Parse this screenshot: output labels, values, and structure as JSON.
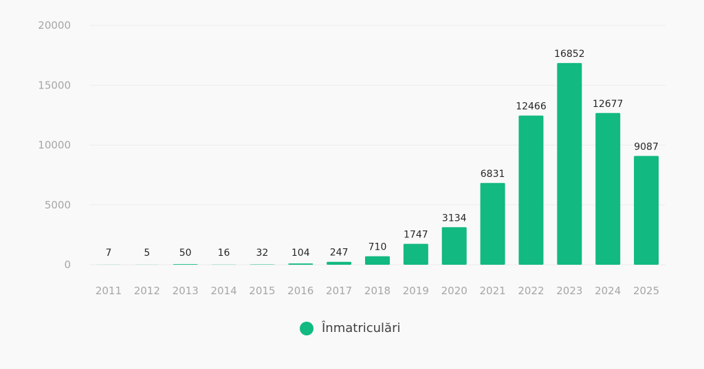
{
  "chart_data": {
    "type": "bar",
    "title": "",
    "xlabel": "",
    "ylabel": "",
    "categories": [
      "2011",
      "2012",
      "2013",
      "2014",
      "2015",
      "2016",
      "2017",
      "2018",
      "2019",
      "2020",
      "2021",
      "2022",
      "2023",
      "2024",
      "2025"
    ],
    "series": [
      {
        "name": "Înmatriculări",
        "color": "#12b981",
        "values": [
          7,
          5,
          50,
          16,
          32,
          104,
          247,
          710,
          1747,
          3134,
          6831,
          12466,
          16852,
          12677,
          9087
        ]
      }
    ],
    "ylim": [
      0,
      20000
    ],
    "yticks": [
      0,
      5000,
      10000,
      15000,
      20000
    ],
    "grid": true,
    "legend": "bottom-center"
  }
}
